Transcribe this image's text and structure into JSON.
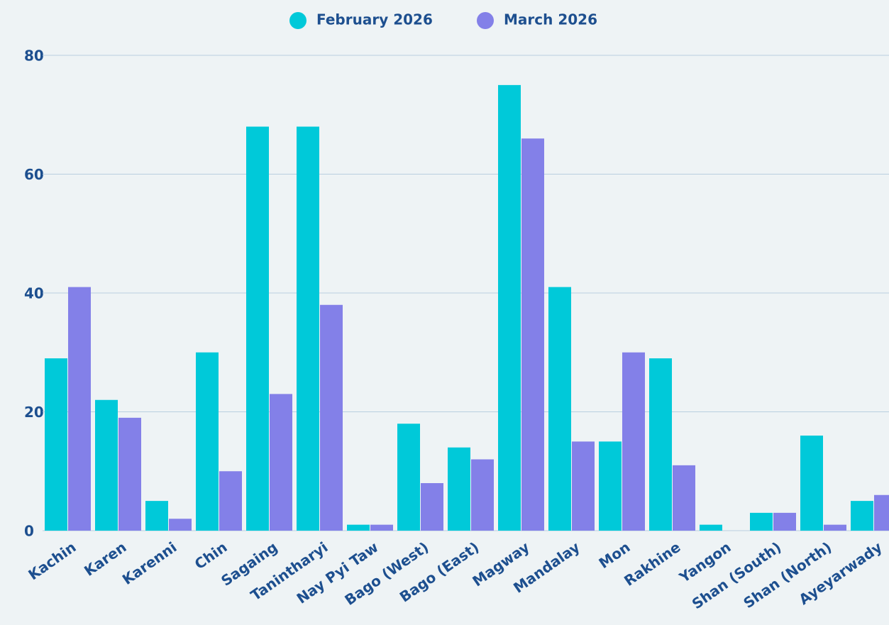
{
  "chart_data": {
    "type": "bar",
    "categories": [
      "Kachin",
      "Karen",
      "Karenni",
      "Chin",
      "Sagaing",
      "Tanintharyi",
      "Nay Pyi Taw",
      "Bago (West)",
      "Bago (East)",
      "Magway",
      "Mandalay",
      "Mon",
      "Rakhine",
      "Yangon",
      "Shan (South)",
      "Shan (North)",
      "Ayeyarwady"
    ],
    "series": [
      {
        "name": "February 2026",
        "color": "#00c9d9",
        "values": [
          29,
          22,
          5,
          30,
          68,
          68,
          1,
          18,
          14,
          75,
          41,
          15,
          29,
          1,
          3,
          16,
          5
        ]
      },
      {
        "name": "March 2026",
        "color": "#8380e8",
        "values": [
          41,
          19,
          2,
          10,
          23,
          38,
          1,
          8,
          12,
          66,
          15,
          30,
          11,
          0,
          3,
          1,
          6
        ]
      }
    ],
    "ylim": [
      0,
      80
    ],
    "yticks": [
      0,
      20,
      40,
      60,
      80
    ],
    "grid": true,
    "legend": "top"
  }
}
